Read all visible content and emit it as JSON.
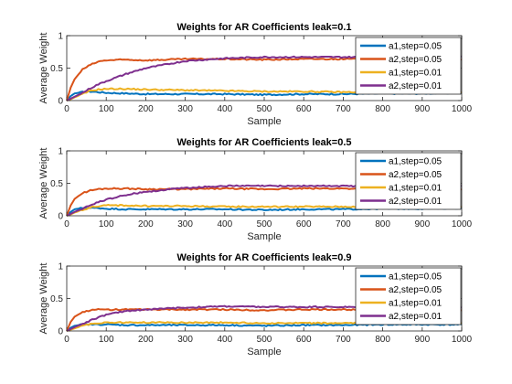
{
  "figure": {
    "background": "#ffffff"
  },
  "chart_data": [
    {
      "type": "line",
      "title": "Weights for AR Coefficients leak=0.1",
      "xlabel": "Sample",
      "ylabel": "Average Weight",
      "xlim": [
        0,
        1000
      ],
      "ylim": [
        0,
        1
      ],
      "xticks": [
        0,
        100,
        200,
        300,
        400,
        500,
        600,
        700,
        800,
        900,
        1000
      ],
      "yticks": [
        0,
        0.5,
        1
      ],
      "xtick_labels": [
        "0",
        "100",
        "200",
        "300",
        "400",
        "500",
        "600",
        "700",
        "800",
        "900",
        "1000"
      ],
      "ytick_labels": [
        "0",
        "0.5",
        "1"
      ],
      "legend_position": "top-right",
      "series": [
        {
          "name": "a1,step=0.05",
          "color": "#0072BD",
          "x": [
            0,
            10,
            20,
            40,
            60,
            80,
            100,
            150,
            200,
            300,
            400,
            500,
            600,
            700,
            800,
            900,
            1000
          ],
          "y": [
            0,
            0.07,
            0.11,
            0.13,
            0.14,
            0.13,
            0.12,
            0.11,
            0.1,
            0.1,
            0.1,
            0.09,
            0.1,
            0.1,
            0.11,
            0.11,
            0.12
          ]
        },
        {
          "name": "a2,step=0.05",
          "color": "#D95319",
          "x": [
            0,
            10,
            20,
            40,
            60,
            80,
            100,
            150,
            200,
            300,
            400,
            500,
            600,
            700,
            800,
            900,
            1000
          ],
          "y": [
            0,
            0.2,
            0.33,
            0.48,
            0.55,
            0.6,
            0.62,
            0.63,
            0.62,
            0.64,
            0.64,
            0.63,
            0.64,
            0.64,
            0.64,
            0.65,
            0.63
          ]
        },
        {
          "name": "a1,step=0.01",
          "color": "#EDB120",
          "x": [
            0,
            10,
            20,
            40,
            60,
            80,
            100,
            150,
            200,
            300,
            400,
            500,
            600,
            700,
            800,
            900,
            1000
          ],
          "y": [
            0,
            0.02,
            0.05,
            0.1,
            0.15,
            0.17,
            0.18,
            0.18,
            0.17,
            0.16,
            0.15,
            0.14,
            0.14,
            0.13,
            0.13,
            0.13,
            0.13
          ]
        },
        {
          "name": "a2,step=0.01",
          "color": "#7E2F8E",
          "x": [
            0,
            10,
            20,
            40,
            60,
            80,
            100,
            150,
            200,
            300,
            400,
            500,
            600,
            700,
            800,
            900,
            1000
          ],
          "y": [
            0,
            0.03,
            0.06,
            0.12,
            0.19,
            0.25,
            0.3,
            0.41,
            0.5,
            0.61,
            0.65,
            0.67,
            0.67,
            0.67,
            0.67,
            0.68,
            0.68
          ]
        }
      ]
    },
    {
      "type": "line",
      "title": "Weights for AR Coefficients leak=0.5",
      "xlabel": "Sample",
      "ylabel": "Average Weight",
      "xlim": [
        0,
        1000
      ],
      "ylim": [
        0,
        1
      ],
      "xticks": [
        0,
        100,
        200,
        300,
        400,
        500,
        600,
        700,
        800,
        900,
        1000
      ],
      "yticks": [
        0,
        0.5,
        1
      ],
      "xtick_labels": [
        "0",
        "100",
        "200",
        "300",
        "400",
        "500",
        "600",
        "700",
        "800",
        "900",
        "1000"
      ],
      "ytick_labels": [
        "0",
        "0.5",
        "1"
      ],
      "legend_position": "top-right",
      "series": [
        {
          "name": "a1,step=0.05",
          "color": "#0072BD",
          "x": [
            0,
            10,
            20,
            40,
            60,
            80,
            100,
            150,
            200,
            300,
            400,
            500,
            600,
            700,
            800,
            900,
            1000
          ],
          "y": [
            0,
            0.06,
            0.1,
            0.12,
            0.12,
            0.12,
            0.11,
            0.1,
            0.1,
            0.1,
            0.1,
            0.09,
            0.1,
            0.1,
            0.11,
            0.11,
            0.12
          ]
        },
        {
          "name": "a2,step=0.05",
          "color": "#D95319",
          "x": [
            0,
            10,
            20,
            40,
            60,
            80,
            100,
            150,
            200,
            300,
            400,
            500,
            600,
            700,
            800,
            900,
            1000
          ],
          "y": [
            0,
            0.16,
            0.26,
            0.35,
            0.39,
            0.41,
            0.42,
            0.42,
            0.41,
            0.41,
            0.42,
            0.41,
            0.42,
            0.42,
            0.41,
            0.42,
            0.41
          ]
        },
        {
          "name": "a1,step=0.01",
          "color": "#EDB120",
          "x": [
            0,
            10,
            20,
            40,
            60,
            80,
            100,
            150,
            200,
            300,
            400,
            500,
            600,
            700,
            800,
            900,
            1000
          ],
          "y": [
            0,
            0.02,
            0.05,
            0.09,
            0.13,
            0.15,
            0.16,
            0.16,
            0.15,
            0.15,
            0.14,
            0.14,
            0.14,
            0.14,
            0.14,
            0.14,
            0.14
          ]
        },
        {
          "name": "a2,step=0.01",
          "color": "#7E2F8E",
          "x": [
            0,
            10,
            20,
            40,
            60,
            80,
            100,
            150,
            200,
            300,
            400,
            500,
            600,
            700,
            800,
            900,
            1000
          ],
          "y": [
            0,
            0.03,
            0.06,
            0.11,
            0.16,
            0.21,
            0.25,
            0.32,
            0.37,
            0.43,
            0.46,
            0.46,
            0.46,
            0.46,
            0.45,
            0.46,
            0.46
          ]
        }
      ]
    },
    {
      "type": "line",
      "title": "Weights for AR Coefficients leak=0.9",
      "xlabel": "Sample",
      "ylabel": "Average Weight",
      "xlim": [
        0,
        1000
      ],
      "ylim": [
        0,
        1
      ],
      "xticks": [
        0,
        100,
        200,
        300,
        400,
        500,
        600,
        700,
        800,
        900,
        1000
      ],
      "yticks": [
        0,
        0.5,
        1
      ],
      "xtick_labels": [
        "0",
        "100",
        "200",
        "300",
        "400",
        "500",
        "600",
        "700",
        "800",
        "900",
        "1000"
      ],
      "ytick_labels": [
        "0",
        "0.5",
        "1"
      ],
      "legend_position": "top-right",
      "series": [
        {
          "name": "a1,step=0.05",
          "color": "#0072BD",
          "x": [
            0,
            10,
            20,
            40,
            60,
            80,
            100,
            150,
            200,
            300,
            400,
            500,
            600,
            700,
            800,
            900,
            1000
          ],
          "y": [
            0,
            0.05,
            0.08,
            0.1,
            0.1,
            0.1,
            0.1,
            0.09,
            0.09,
            0.09,
            0.09,
            0.08,
            0.09,
            0.09,
            0.1,
            0.1,
            0.1
          ]
        },
        {
          "name": "a2,step=0.05",
          "color": "#D95319",
          "x": [
            0,
            10,
            20,
            40,
            60,
            80,
            100,
            150,
            200,
            300,
            400,
            500,
            600,
            700,
            800,
            900,
            1000
          ],
          "y": [
            0,
            0.14,
            0.22,
            0.29,
            0.32,
            0.33,
            0.33,
            0.33,
            0.33,
            0.33,
            0.33,
            0.32,
            0.33,
            0.33,
            0.32,
            0.33,
            0.32
          ]
        },
        {
          "name": "a1,step=0.01",
          "color": "#EDB120",
          "x": [
            0,
            10,
            20,
            40,
            60,
            80,
            100,
            150,
            200,
            300,
            400,
            500,
            600,
            700,
            800,
            900,
            1000
          ],
          "y": [
            0,
            0.02,
            0.04,
            0.08,
            0.11,
            0.12,
            0.13,
            0.13,
            0.13,
            0.13,
            0.13,
            0.12,
            0.12,
            0.12,
            0.12,
            0.12,
            0.12
          ]
        },
        {
          "name": "a2,step=0.01",
          "color": "#7E2F8E",
          "x": [
            0,
            10,
            20,
            40,
            60,
            80,
            100,
            150,
            200,
            300,
            400,
            500,
            600,
            700,
            800,
            900,
            1000
          ],
          "y": [
            0,
            0.03,
            0.06,
            0.11,
            0.16,
            0.21,
            0.25,
            0.31,
            0.33,
            0.36,
            0.38,
            0.37,
            0.37,
            0.37,
            0.36,
            0.37,
            0.36
          ]
        }
      ]
    }
  ]
}
